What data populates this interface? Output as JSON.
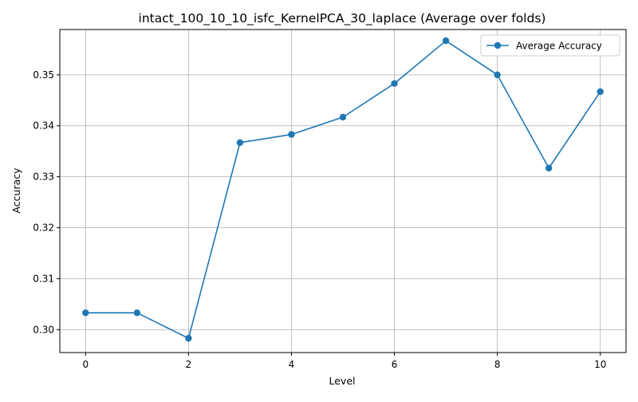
{
  "chart_data": {
    "type": "line",
    "title": "intact_100_10_10_isfc_KernelPCA_30_laplace (Average over folds)",
    "xlabel": "Level",
    "ylabel": "Accuracy",
    "x": [
      0,
      1,
      2,
      3,
      4,
      5,
      6,
      7,
      8,
      9,
      10
    ],
    "series": [
      {
        "name": "Average Accuracy",
        "color": "#1f77b4",
        "marker": "circle",
        "values": [
          0.3033,
          0.3033,
          0.2983,
          0.3367,
          0.3383,
          0.3417,
          0.3483,
          0.3567,
          0.35,
          0.3317,
          0.3467
        ]
      }
    ],
    "xlim": [
      -0.5,
      10.5
    ],
    "ylim": [
      0.2955,
      0.3589
    ],
    "xticks": [
      0,
      2,
      4,
      6,
      8,
      10
    ],
    "xtick_labels": [
      "0",
      "2",
      "4",
      "6",
      "8",
      "10"
    ],
    "yticks": [
      0.3,
      0.31,
      0.32,
      0.33,
      0.34,
      0.35
    ],
    "ytick_labels": [
      "0.30",
      "0.31",
      "0.32",
      "0.33",
      "0.34",
      "0.35"
    ],
    "grid": true,
    "legend_position": "top-right"
  }
}
